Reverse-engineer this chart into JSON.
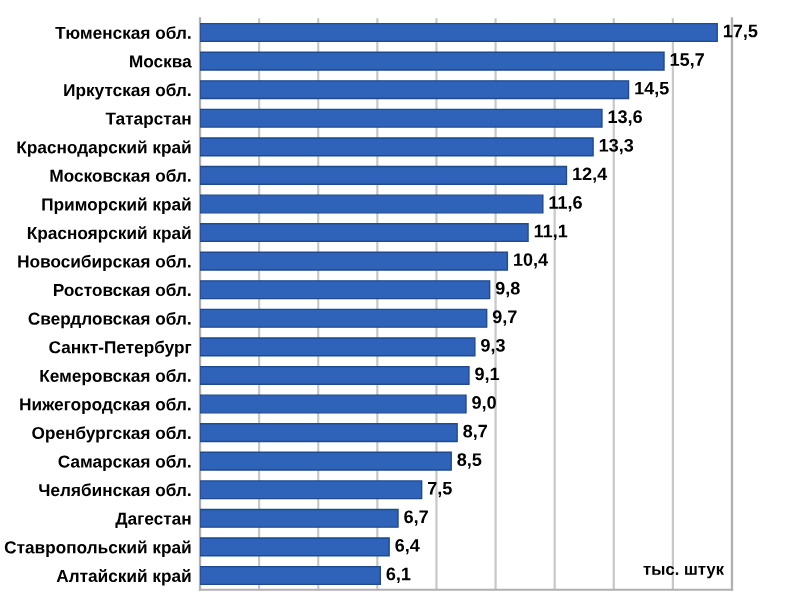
{
  "chart_data": {
    "type": "bar",
    "orientation": "horizontal",
    "categories": [
      "Тюменская обл.",
      "Москва",
      "Иркутская обл.",
      "Татарстан",
      "Краснодарский край",
      "Московская обл.",
      "Приморский край",
      "Красноярский край",
      "Новосибирская обл.",
      "Ростовская обл.",
      "Свердловская обл.",
      "Санкт-Петербург",
      "Кемеровская обл.",
      "Нижегородская обл.",
      "Оренбургская обл.",
      "Самарская обл.",
      "Челябинская обл.",
      "Дагестан",
      "Ставропольский край",
      "Алтайский край"
    ],
    "values": [
      17.5,
      15.7,
      14.5,
      13.6,
      13.3,
      12.4,
      11.6,
      11.1,
      10.4,
      9.8,
      9.7,
      9.3,
      9.1,
      9.0,
      8.7,
      8.5,
      7.5,
      6.7,
      6.4,
      6.1
    ],
    "value_labels": [
      "17,5",
      "15,7",
      "14,5",
      "13,6",
      "13,3",
      "12,4",
      "11,6",
      "11,1",
      "10,4",
      "9,8",
      "9,7",
      "9,3",
      "9,1",
      "9,0",
      "8,7",
      "8,5",
      "7,5",
      "6,7",
      "6,4",
      "6,1"
    ],
    "color": "#2f63b9",
    "xlim": [
      0,
      18
    ],
    "xticks": [
      {
        "value": 0,
        "label": null
      },
      {
        "value": 2,
        "label": null
      },
      {
        "value": 4,
        "label": null
      },
      {
        "value": 6,
        "label": null
      },
      {
        "value": 8,
        "label": null
      },
      {
        "value": 10,
        "label": null
      },
      {
        "value": 12,
        "label": null
      },
      {
        "value": 14,
        "label": null
      },
      {
        "value": 16,
        "label": null
      },
      {
        "value": 18,
        "label": null
      }
    ],
    "grid": "x",
    "tick_labels": "y",
    "annotations": [
      "тыс. штук"
    ]
  }
}
